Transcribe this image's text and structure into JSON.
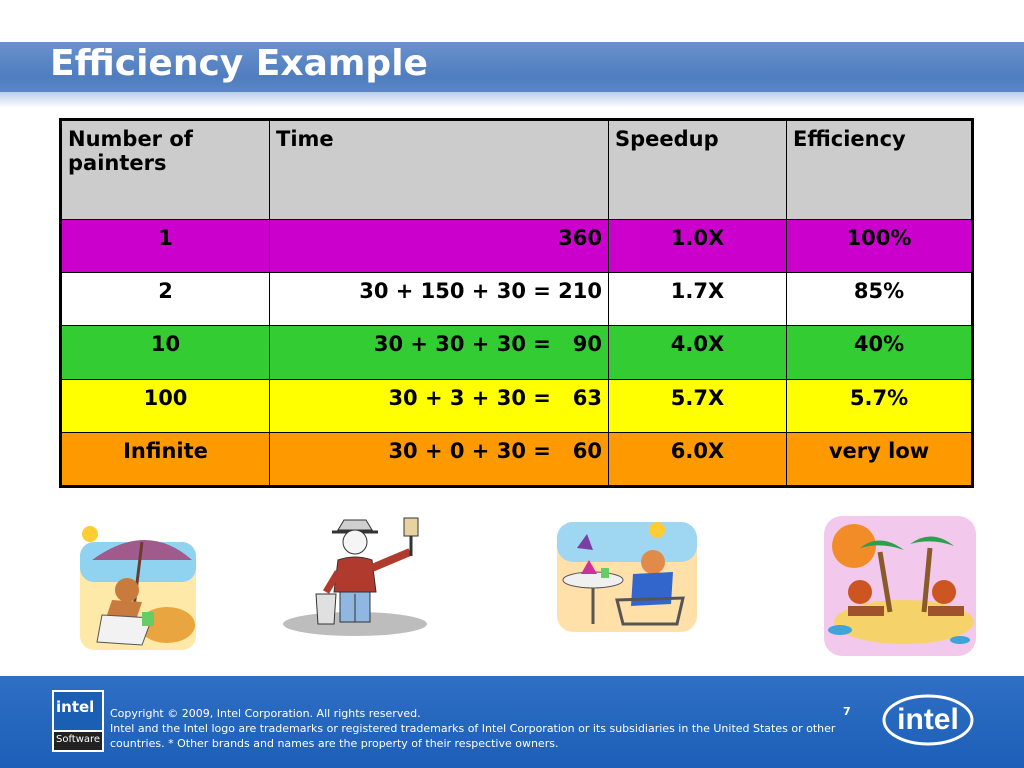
{
  "slide": {
    "title": "Efficiency Example",
    "page_number": "7"
  },
  "table": {
    "headers": [
      "Number of painters",
      "Time",
      "Speedup",
      "Efficiency"
    ],
    "rows": [
      {
        "painters": "1",
        "time": "360",
        "speedup": "1.0X",
        "efficiency": "100%",
        "color": "#cc00cc"
      },
      {
        "painters": "2",
        "time": "30 + 150 + 30 = 210",
        "speedup": "1.7X",
        "efficiency": "85%",
        "color": "#ffffff"
      },
      {
        "painters": "10",
        "time": "30 + 30 + 30 =   90",
        "speedup": "4.0X",
        "efficiency": "40%",
        "color": "#33cc33"
      },
      {
        "painters": "100",
        "time": "30 + 3 + 30 =   63",
        "speedup": "5.7X",
        "efficiency": "5.7%",
        "color": "#ffff00"
      },
      {
        "painters": "Infinite",
        "time": "30 + 0 + 30 =   60",
        "speedup": "6.0X",
        "efficiency": "very low",
        "color": "#ff9900"
      }
    ]
  },
  "colors": {
    "title_bar": "#4f7dbf",
    "footer": "#1d5fb8",
    "header_cell": "#cccccc"
  },
  "footer": {
    "copyright": "Copyright © 2009, Intel Corporation. All rights reserved.",
    "trademark": "Intel and the Intel logo are trademarks or registered trademarks of Intel Corporation or its subsidiaries in the United States or other countries. * Other brands and names are the property of their respective owners.",
    "software_logo_top": "intel",
    "software_logo_bottom": "Software",
    "intel_logo": "intel"
  },
  "illustrations": [
    "beach-lounger-clipart",
    "painter-clipart",
    "cafe-table-clipart",
    "island-relax-clipart"
  ]
}
